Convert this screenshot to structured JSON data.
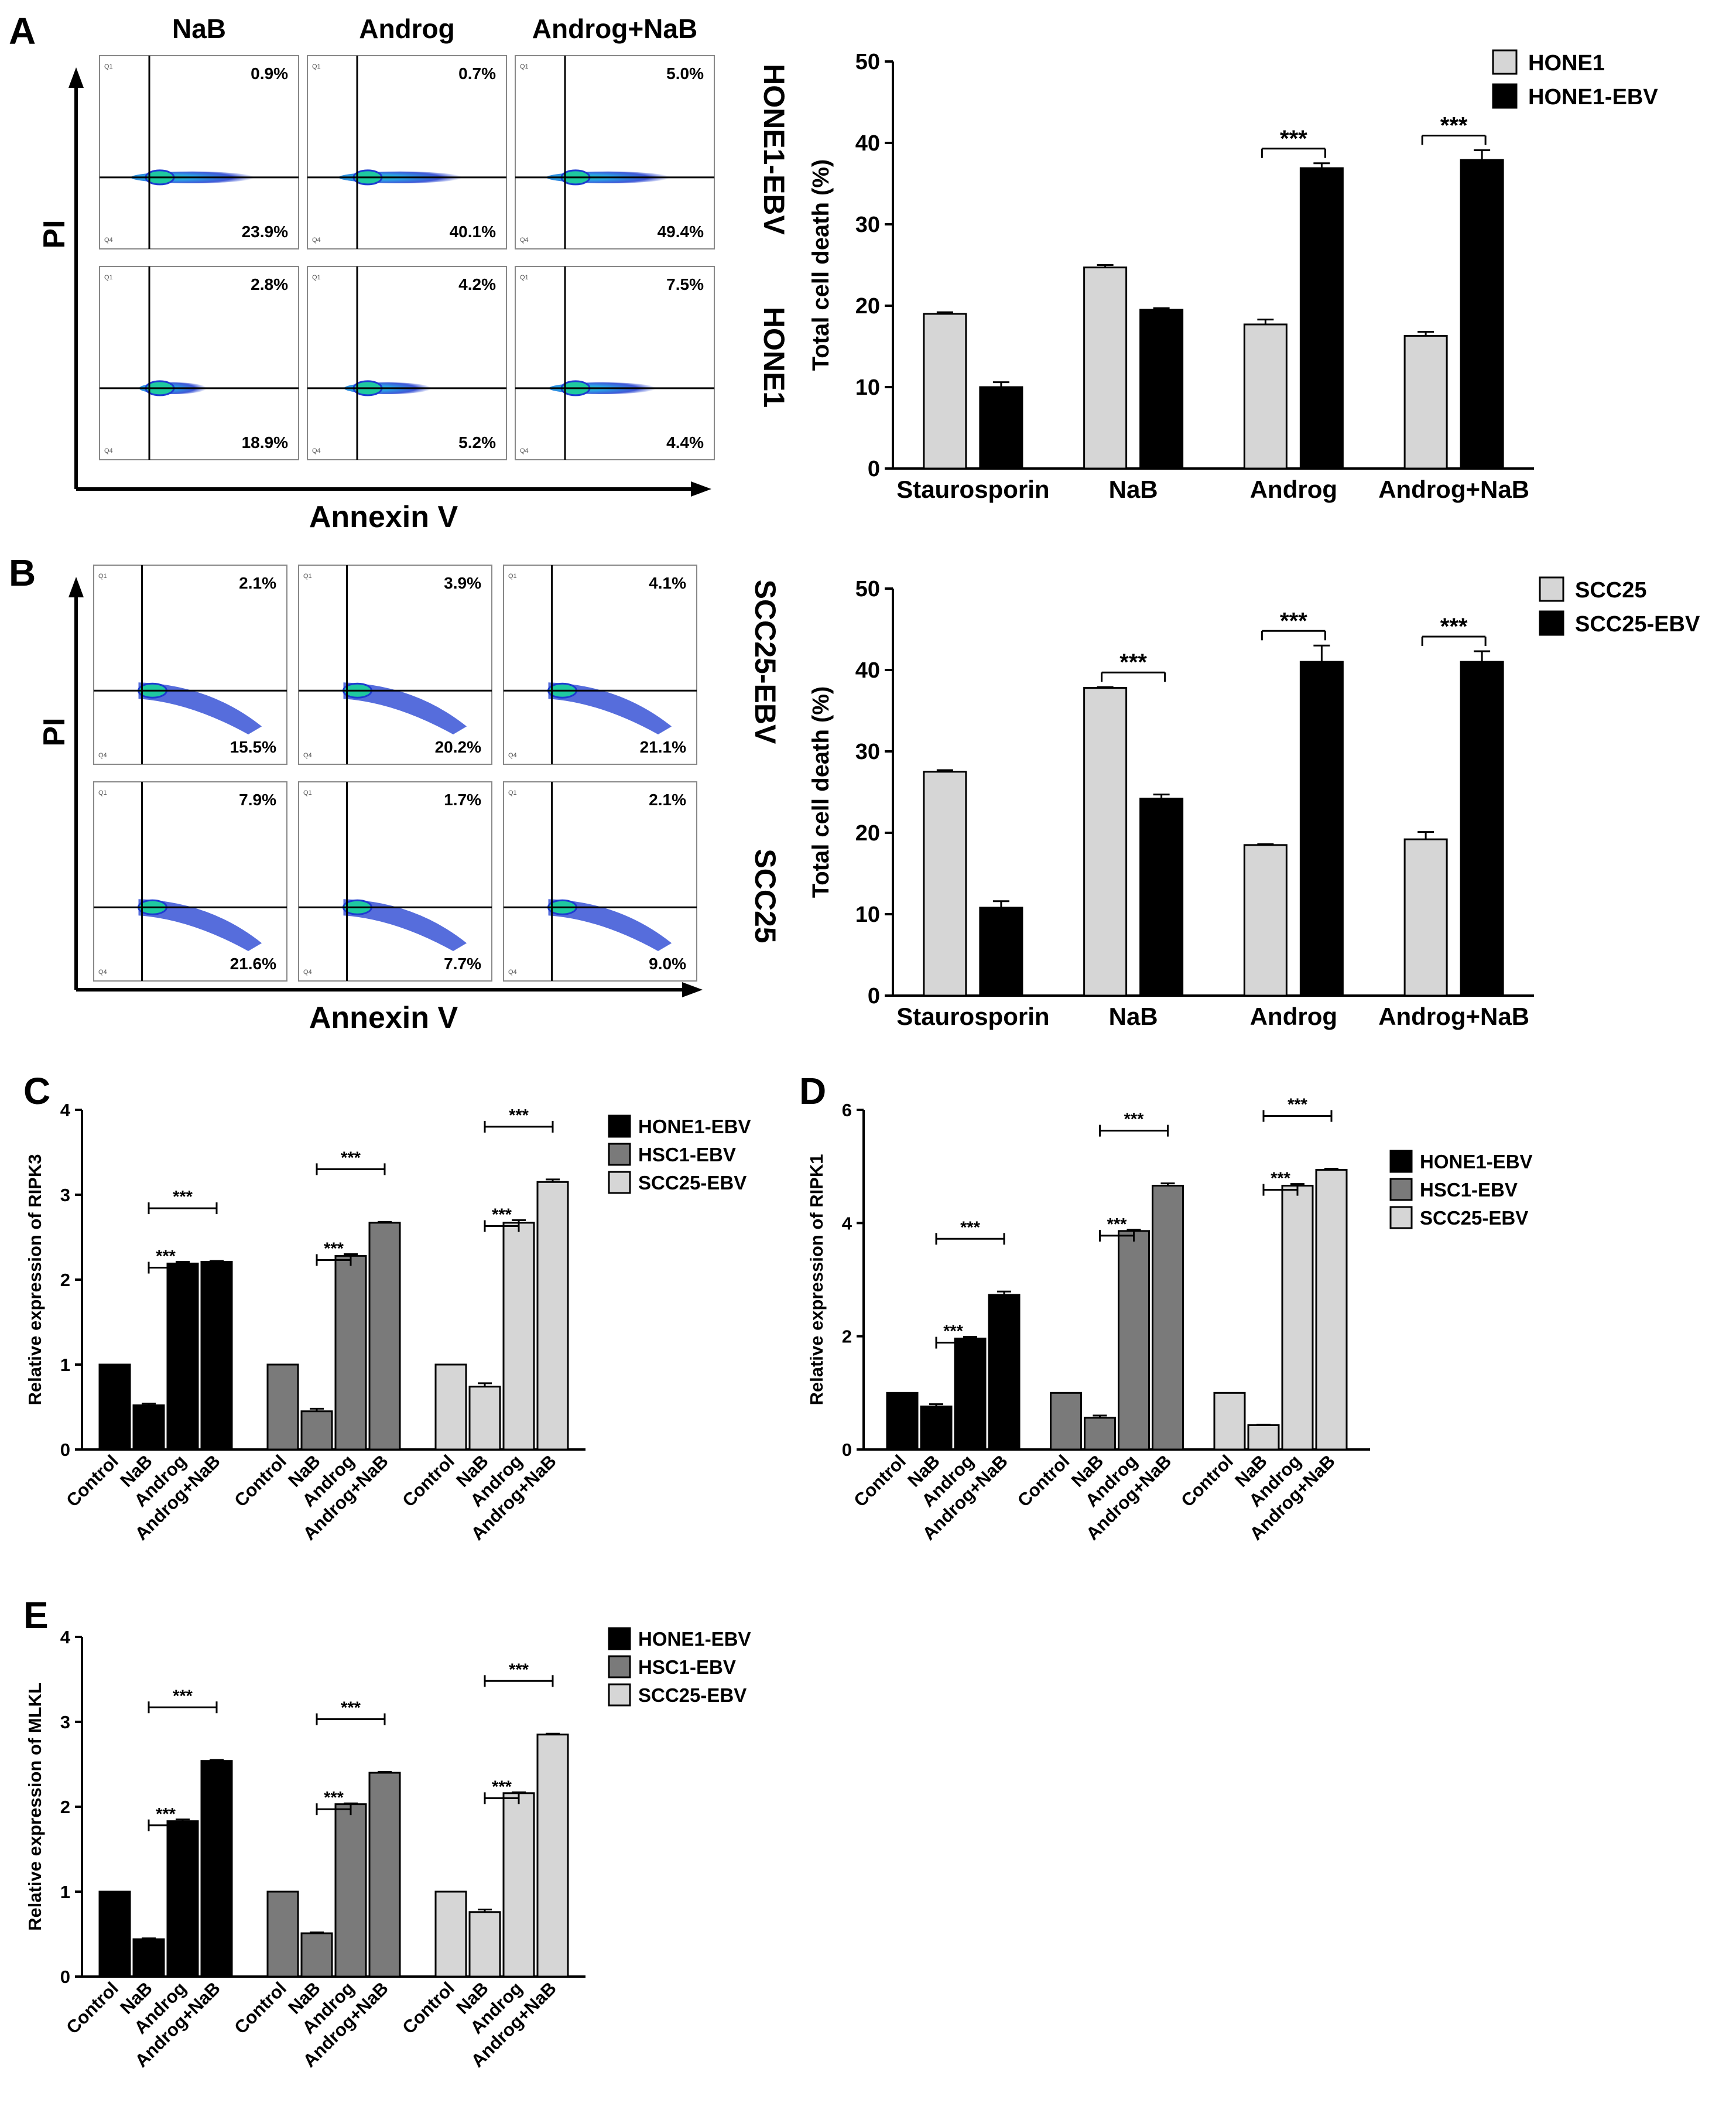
{
  "colors": {
    "light": "#d6d6d6",
    "mid": "#7a7a7a",
    "dark": "#000000",
    "accent": "#1e3cd0"
  },
  "panel_labels": [
    "A",
    "B",
    "C",
    "D",
    "E"
  ],
  "flow": [
    {
      "columns": [
        "NaB",
        "Androg",
        "Androg+NaB"
      ],
      "rows": [
        "HONE1-EBV",
        "HONE1"
      ],
      "y_axis": "PI",
      "x_axis": "Annexin V",
      "quadrant_top": "Q1",
      "quadrant_bottom": "Q4",
      "upper_left": [
        [
          "0.9%",
          "0.7%",
          "5.0%"
        ],
        [
          "2.8%",
          "4.2%",
          "7.5%"
        ]
      ],
      "lower_right": [
        [
          "23.9%",
          "40.1%",
          "49.4%"
        ],
        [
          "18.9%",
          "5.2%",
          "4.4%"
        ]
      ]
    },
    {
      "columns": [],
      "rows": [
        "SCC25-EBV",
        "SCC25"
      ],
      "y_axis": "PI",
      "x_axis": "Annexin V",
      "quadrant_top": "Q1",
      "quadrant_bottom": "Q4",
      "upper_left": [
        [
          "2.1%",
          "3.9%",
          "4.1%"
        ],
        [
          "7.9%",
          "1.7%",
          "2.1%"
        ]
      ],
      "lower_right": [
        [
          "15.5%",
          "20.2%",
          "21.1%"
        ],
        [
          "21.6%",
          "7.7%",
          "9.0%"
        ]
      ]
    }
  ],
  "chart_data": [
    {
      "id": "A-bar",
      "type": "bar",
      "title": "",
      "xlabel": "",
      "ylabel": "Total cell death (%)",
      "ylim": [
        0,
        50
      ],
      "yticks": [
        "0",
        "10",
        "20",
        "30",
        "40",
        "50"
      ],
      "categories": [
        "Staurosporin",
        "NaB",
        "Androg",
        "Androg+NaB"
      ],
      "series": [
        {
          "name": "HONE1",
          "color": "#d6d6d6",
          "values": [
            19,
            24.7,
            17.7,
            16.3
          ],
          "errors": [
            0.2,
            0.3,
            0.6,
            0.5
          ]
        },
        {
          "name": "HONE1-EBV",
          "color": "#000000",
          "values": [
            10,
            19.5,
            36.9,
            37.9
          ],
          "errors": [
            0.6,
            0.2,
            0.6,
            1.2
          ]
        }
      ],
      "significance": [
        {
          "category": "Androg",
          "label": "***"
        },
        {
          "category": "Androg+NaB",
          "label": "***"
        }
      ]
    },
    {
      "id": "B-bar",
      "type": "bar",
      "title": "",
      "xlabel": "",
      "ylabel": "Total cell death (%)",
      "ylim": [
        0,
        50
      ],
      "yticks": [
        "0",
        "10",
        "20",
        "30",
        "40",
        "50"
      ],
      "categories": [
        "Staurosporin",
        "NaB",
        "Androg",
        "Androg+NaB"
      ],
      "series": [
        {
          "name": "SCC25",
          "color": "#d6d6d6",
          "values": [
            27.5,
            37.8,
            18.5,
            19.2
          ],
          "errors": [
            0.2,
            0.1,
            0.1,
            0.9
          ]
        },
        {
          "name": "SCC25-EBV",
          "color": "#000000",
          "values": [
            10.8,
            24.2,
            41,
            41
          ],
          "errors": [
            0.8,
            0.5,
            2.0,
            1.3
          ]
        }
      ],
      "significance": [
        {
          "category": "NaB",
          "label": "***"
        },
        {
          "category": "Androg",
          "label": "***"
        },
        {
          "category": "Androg+NaB",
          "label": "***"
        }
      ]
    },
    {
      "id": "C",
      "type": "bar",
      "title": "",
      "ylabel": "Relative expression of RIPK3",
      "ylim": [
        0,
        4
      ],
      "yticks": [
        "0",
        "1",
        "2",
        "3",
        "4"
      ],
      "categories": [
        "Control",
        "NaB",
        "Androg",
        "Androg+NaB"
      ],
      "series": [
        {
          "name": "HONE1-EBV",
          "color": "#000000",
          "values": [
            1,
            0.52,
            2.19,
            2.21
          ],
          "errors": [
            0,
            0.02,
            0.02,
            0.01
          ]
        },
        {
          "name": "HSC1-EBV",
          "color": "#7a7a7a",
          "values": [
            1,
            0.45,
            2.28,
            2.67
          ],
          "errors": [
            0,
            0.03,
            0.02,
            0.01
          ]
        },
        {
          "name": "SCC25-EBV",
          "color": "#d6d6d6",
          "values": [
            1,
            0.74,
            2.67,
            3.15
          ],
          "errors": [
            0,
            0.04,
            0.03,
            0.03
          ]
        }
      ],
      "significance": [
        {
          "from": "NaB",
          "to": "Androg",
          "label": "***"
        },
        {
          "from": "NaB",
          "to": "Androg+NaB",
          "label": "***"
        }
      ]
    },
    {
      "id": "D",
      "type": "bar",
      "title": "",
      "ylabel": "Relative expression of RIPK1",
      "ylim": [
        0,
        6
      ],
      "yticks": [
        "0",
        "2",
        "4",
        "6"
      ],
      "categories": [
        "Control",
        "NaB",
        "Androg",
        "Androg+NaB"
      ],
      "series": [
        {
          "name": "HONE1-EBV",
          "color": "#000000",
          "values": [
            1,
            0.76,
            1.96,
            2.73
          ],
          "errors": [
            0,
            0.04,
            0.03,
            0.06
          ]
        },
        {
          "name": "HSC1-EBV",
          "color": "#7a7a7a",
          "values": [
            1,
            0.56,
            3.86,
            4.66
          ],
          "errors": [
            0,
            0.04,
            0.02,
            0.04
          ]
        },
        {
          "name": "SCC25-EBV",
          "color": "#d6d6d6",
          "values": [
            1,
            0.43,
            4.66,
            4.94
          ],
          "errors": [
            0,
            0.01,
            0.03,
            0.02
          ]
        }
      ],
      "significance": [
        {
          "from": "NaB",
          "to": "Androg",
          "label": "***"
        },
        {
          "from": "NaB",
          "to": "Androg+NaB",
          "label": "***"
        }
      ]
    },
    {
      "id": "E",
      "type": "bar",
      "title": "",
      "ylabel": "Relative expression of MLKL",
      "ylim": [
        0,
        4
      ],
      "yticks": [
        "0",
        "1",
        "2",
        "3",
        "4"
      ],
      "categories": [
        "Control",
        "NaB",
        "Androg",
        "Androg+NaB"
      ],
      "series": [
        {
          "name": "HONE1-EBV",
          "color": "#000000",
          "values": [
            1,
            0.44,
            1.83,
            2.54
          ],
          "errors": [
            0,
            0.01,
            0.02,
            0.01
          ]
        },
        {
          "name": "HSC1-EBV",
          "color": "#7a7a7a",
          "values": [
            1,
            0.51,
            2.03,
            2.4
          ],
          "errors": [
            0,
            0.01,
            0.01,
            0.01
          ]
        },
        {
          "name": "SCC25-EBV",
          "color": "#d6d6d6",
          "values": [
            1,
            0.76,
            2.16,
            2.85
          ],
          "errors": [
            0,
            0.03,
            0.01,
            0.01
          ]
        }
      ],
      "significance": [
        {
          "from": "NaB",
          "to": "Androg",
          "label": "***"
        },
        {
          "from": "NaB",
          "to": "Androg+NaB",
          "label": "***"
        }
      ]
    }
  ]
}
